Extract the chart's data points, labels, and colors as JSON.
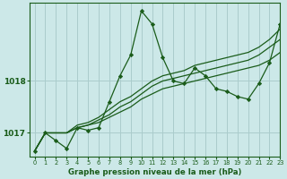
{
  "title": "Graphe pression niveau de la mer (hPa)",
  "bg_color": "#cce8e8",
  "plot_bg_color": "#cce8e8",
  "grid_color": "#aacccc",
  "line_color": "#1a5c1a",
  "xlim": [
    -0.5,
    23
  ],
  "ylim": [
    1016.55,
    1019.5
  ],
  "yticks": [
    1017,
    1018
  ],
  "xticks": [
    0,
    1,
    2,
    3,
    4,
    5,
    6,
    7,
    8,
    9,
    10,
    11,
    12,
    13,
    14,
    15,
    16,
    17,
    18,
    19,
    20,
    21,
    22,
    23
  ],
  "series_spiky": [
    1016.65,
    1017.0,
    1016.85,
    1016.7,
    1017.1,
    1017.05,
    1017.1,
    1017.6,
    1018.1,
    1018.5,
    1019.35,
    1019.1,
    1018.45,
    1018.0,
    1017.95,
    1018.25,
    1018.1,
    1017.85,
    1017.8,
    1017.7,
    1017.65,
    1017.95,
    1018.35,
    1019.1
  ],
  "series_straight": [
    [
      1016.65,
      1017.0,
      1017.0,
      1017.0,
      1017.1,
      1017.15,
      1017.2,
      1017.3,
      1017.4,
      1017.5,
      1017.65,
      1017.75,
      1017.85,
      1017.9,
      1017.95,
      1018.0,
      1018.05,
      1018.1,
      1018.15,
      1018.2,
      1018.25,
      1018.3,
      1018.4,
      1018.55
    ],
    [
      1016.65,
      1017.0,
      1017.0,
      1017.0,
      1017.1,
      1017.15,
      1017.25,
      1017.35,
      1017.5,
      1017.6,
      1017.75,
      1017.9,
      1018.0,
      1018.05,
      1018.1,
      1018.15,
      1018.2,
      1018.25,
      1018.3,
      1018.35,
      1018.4,
      1018.5,
      1018.65,
      1018.8
    ],
    [
      1016.65,
      1017.0,
      1017.0,
      1017.0,
      1017.15,
      1017.2,
      1017.3,
      1017.45,
      1017.6,
      1017.7,
      1017.85,
      1018.0,
      1018.1,
      1018.15,
      1018.2,
      1018.3,
      1018.35,
      1018.4,
      1018.45,
      1018.5,
      1018.55,
      1018.65,
      1018.8,
      1019.0
    ]
  ]
}
